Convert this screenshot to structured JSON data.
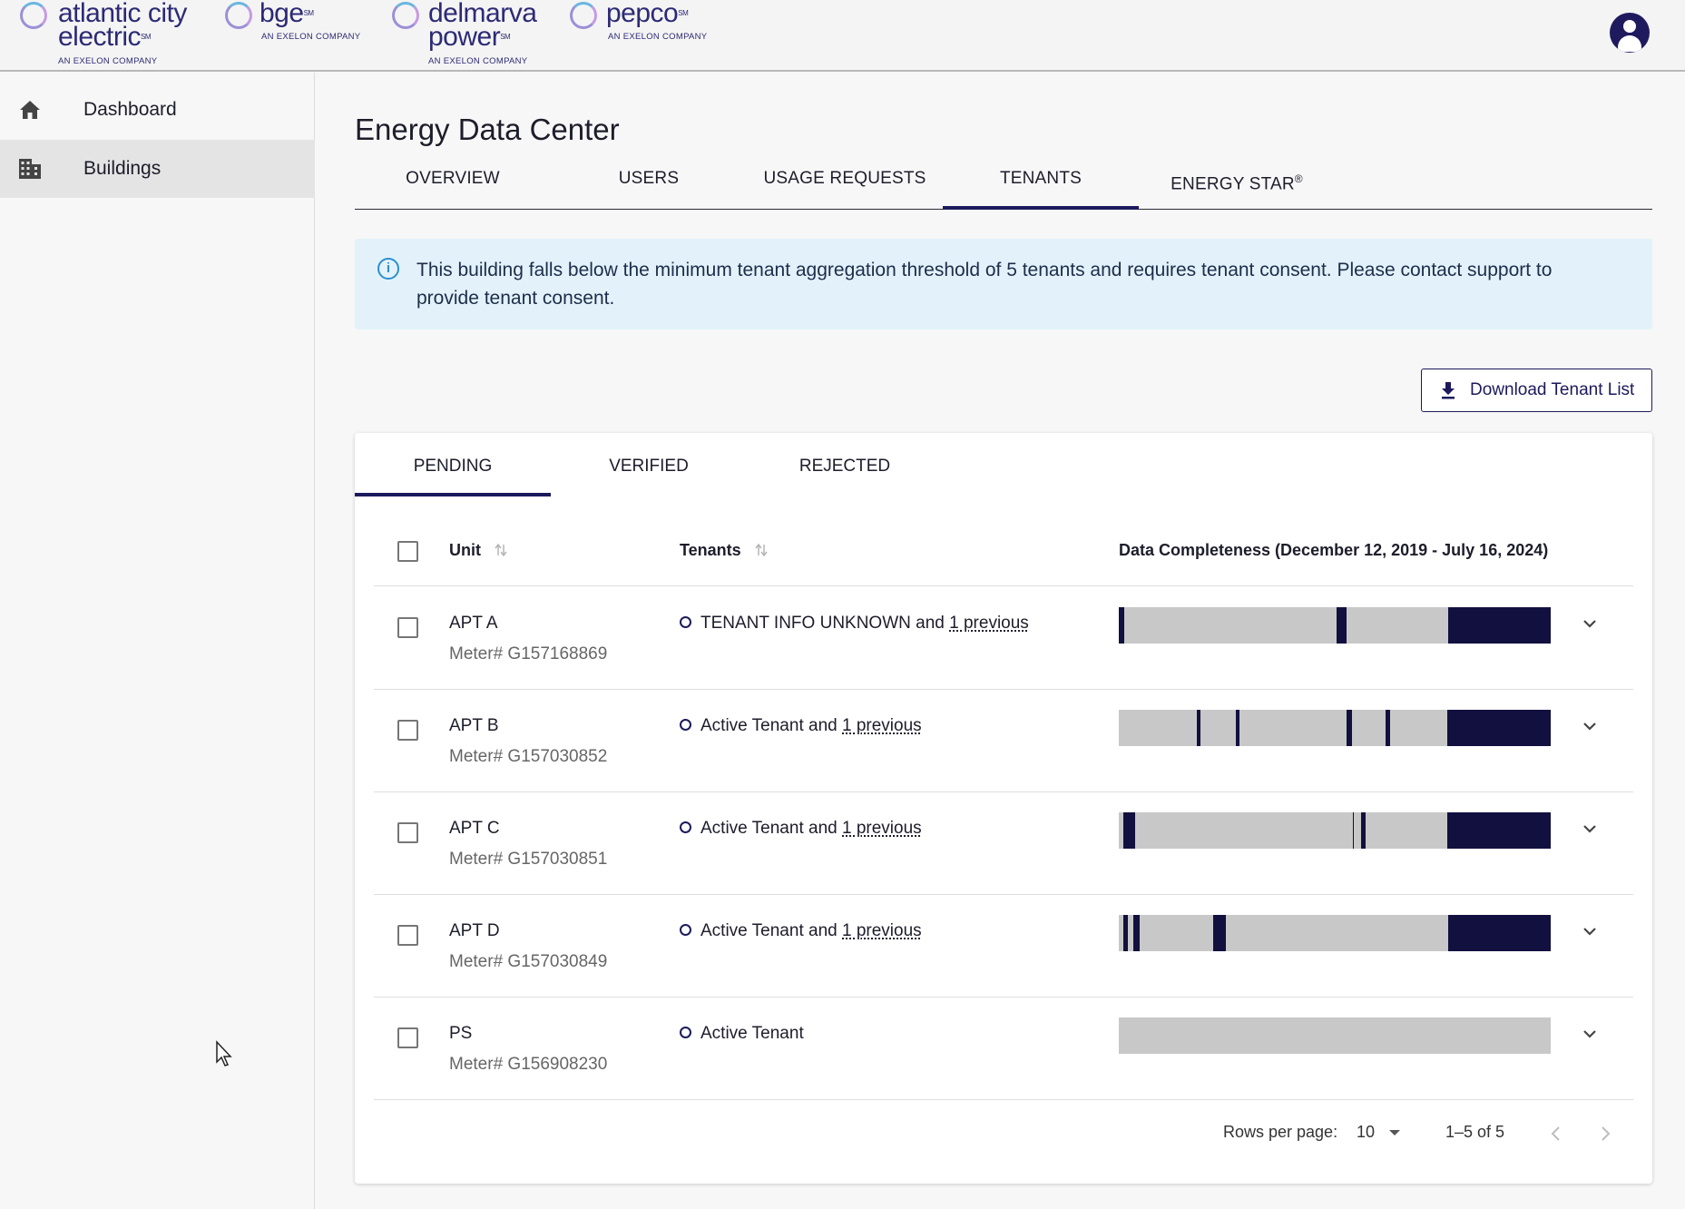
{
  "header": {
    "brands": [
      {
        "name": "atlantic city",
        "name2": "electric",
        "sub": "AN EXELON COMPANY"
      },
      {
        "name": "bge",
        "sub": "AN EXELON COMPANY"
      },
      {
        "name": "delmarva",
        "name2": "power",
        "sub": "AN EXELON COMPANY"
      },
      {
        "name": "pepco",
        "sub": "AN EXELON COMPANY"
      }
    ],
    "avatar_icon": "account-circle-icon"
  },
  "sidebar": {
    "items": [
      {
        "label": "Dashboard",
        "icon": "home-icon",
        "active": false
      },
      {
        "label": "Buildings",
        "icon": "building-icon",
        "active": true
      }
    ]
  },
  "main": {
    "title": "Energy Data Center",
    "tabs": [
      {
        "label": "OVERVIEW",
        "active": false
      },
      {
        "label": "USERS",
        "active": false
      },
      {
        "label": "USAGE REQUESTS",
        "active": false
      },
      {
        "label": "TENANTS",
        "active": true
      },
      {
        "label": "ENERGY STAR",
        "sup": "®",
        "active": false
      }
    ],
    "info_banner": {
      "icon": "info-icon",
      "text": "This building falls below the minimum tenant aggregation threshold of 5 tenants and requires tenant consent. Please contact support to provide tenant consent."
    },
    "download_button": {
      "label": "Download Tenant List",
      "icon": "download-icon"
    },
    "sub_tabs": [
      {
        "label": "PENDING",
        "active": true
      },
      {
        "label": "VERIFIED",
        "active": false
      },
      {
        "label": "REJECTED",
        "active": false
      }
    ],
    "table": {
      "headers": {
        "unit": "Unit",
        "tenants": "Tenants",
        "completeness": "Data Completeness (December 12, 2019 - July 16, 2024)"
      },
      "rows": [
        {
          "unit": "APT A",
          "meter": "Meter# G157168869",
          "tenant": "TENANT INFO UNKNOWN",
          "joiner": " and ",
          "previous": "1 previous",
          "completeness": [
            [
              0.0,
              0.012
            ],
            [
              0.505,
              0.527
            ],
            [
              0.762,
              1.0
            ]
          ]
        },
        {
          "unit": "APT B",
          "meter": "Meter# G157030852",
          "tenant": "Active Tenant",
          "joiner": " and ",
          "previous": "1 previous",
          "completeness": [
            [
              0.18,
              0.19
            ],
            [
              0.27,
              0.28
            ],
            [
              0.527,
              0.54
            ],
            [
              0.618,
              0.628
            ],
            [
              0.76,
              1.0
            ]
          ]
        },
        {
          "unit": "APT C",
          "meter": "Meter# G157030851",
          "tenant": "Active Tenant",
          "joiner": " and ",
          "previous": "1 previous",
          "completeness": [
            [
              0.01,
              0.038
            ],
            [
              0.541,
              0.545
            ],
            [
              0.561,
              0.572
            ],
            [
              0.76,
              1.0
            ]
          ]
        },
        {
          "unit": "APT D",
          "meter": "Meter# G157030849",
          "tenant": "Active Tenant",
          "joiner": " and ",
          "previous": "1 previous",
          "completeness": [
            [
              0.01,
              0.02
            ],
            [
              0.034,
              0.048
            ],
            [
              0.218,
              0.248
            ],
            [
              0.762,
              1.0
            ]
          ]
        },
        {
          "unit": "PS",
          "meter": "Meter# G156908230",
          "tenant": "Active Tenant",
          "joiner": "",
          "previous": "",
          "completeness": []
        }
      ]
    },
    "pagination": {
      "rows_per_page_label": "Rows per page:",
      "rows_per_page": "10",
      "range": "1–5 of 5"
    }
  },
  "colors": {
    "primary": "#1c1a5c",
    "bar_filled": "#12103f",
    "bar_empty": "#c8c8c8",
    "info_bg": "#e3f2fa",
    "info_icon": "#2b8fcf"
  }
}
